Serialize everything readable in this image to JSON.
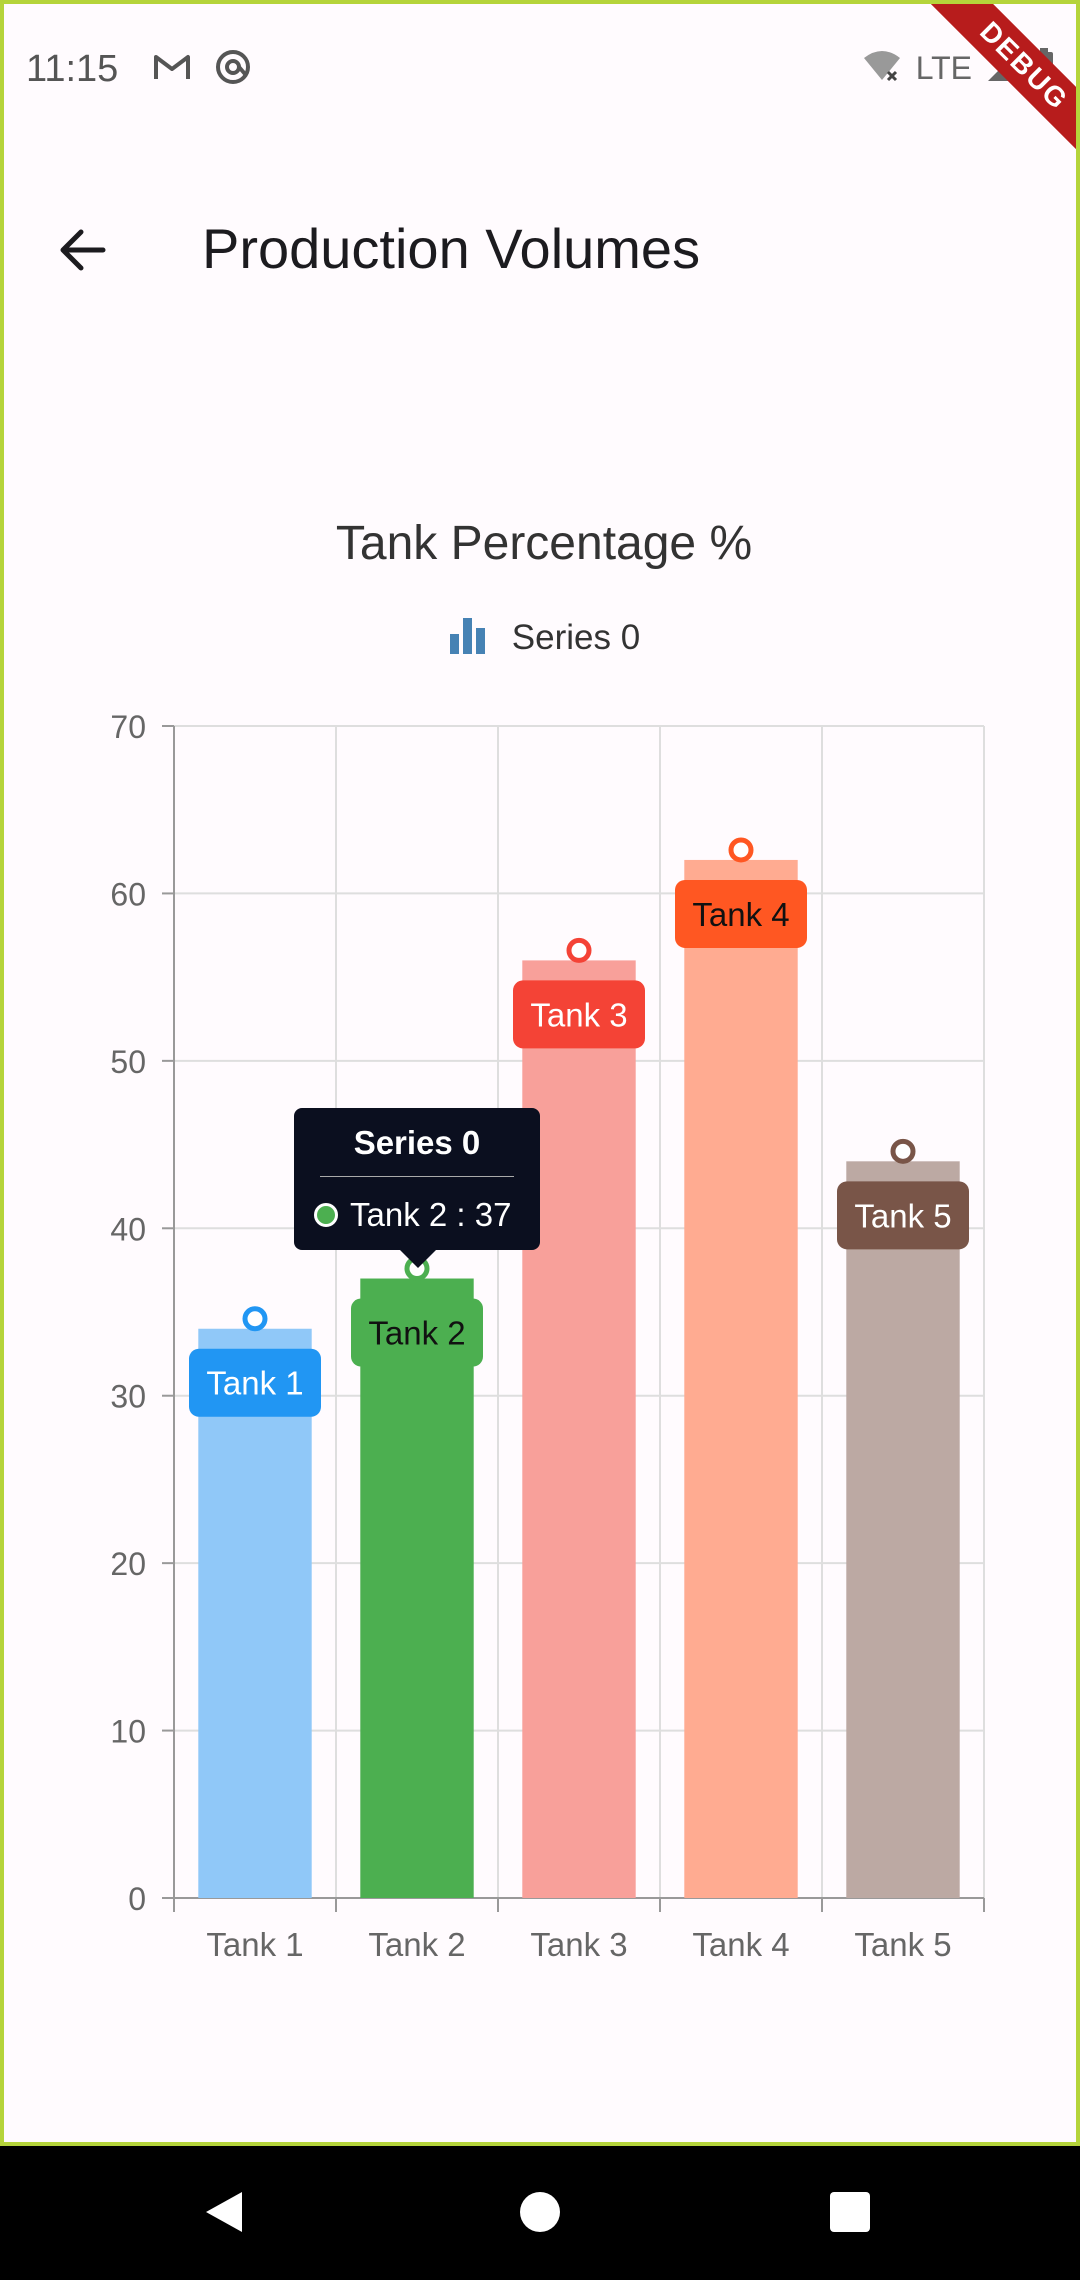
{
  "status_bar": {
    "time": "11:15",
    "network": "LTE",
    "debug_label": "DEBUG",
    "icons": [
      "gmail-icon",
      "at-sign-icon",
      "wifi-off-icon",
      "signal-icon",
      "battery-icon"
    ]
  },
  "app_bar": {
    "title": "Production Volumes",
    "back_icon": "arrow-left-icon"
  },
  "chart_data": {
    "type": "bar",
    "title": "Tank Percentage %",
    "legend": {
      "position": "top-center",
      "entries": [
        "Series 0"
      ]
    },
    "categories": [
      "Tank 1",
      "Tank 2",
      "Tank 3",
      "Tank 4",
      "Tank 5"
    ],
    "series": [
      {
        "name": "Series 0",
        "values": [
          34,
          37,
          56,
          62,
          44
        ],
        "colors": [
          "#2196f3",
          "#4caf50",
          "#f44336",
          "#ff5722",
          "#795548"
        ],
        "fill_colors": [
          "#90c8f8",
          "#4caf50",
          "#f8a09a",
          "#ffab91",
          "#bca9a3"
        ],
        "data_labels": [
          "Tank 1",
          "Tank 2",
          "Tank 3",
          "Tank 4",
          "Tank 5"
        ]
      }
    ],
    "ylim": [
      0,
      70
    ],
    "yticks": [
      0,
      10,
      20,
      30,
      40,
      50,
      60,
      70
    ],
    "grid": true,
    "xlabel": "",
    "ylabel": "",
    "selected_index": 1
  },
  "tooltip": {
    "title": "Series 0",
    "text": "Tank 2 : 37",
    "color": "#4caf50"
  },
  "nav_bar": {
    "back_icon": "nav-back-icon",
    "home_icon": "nav-home-icon",
    "recents_icon": "nav-recents-icon"
  }
}
